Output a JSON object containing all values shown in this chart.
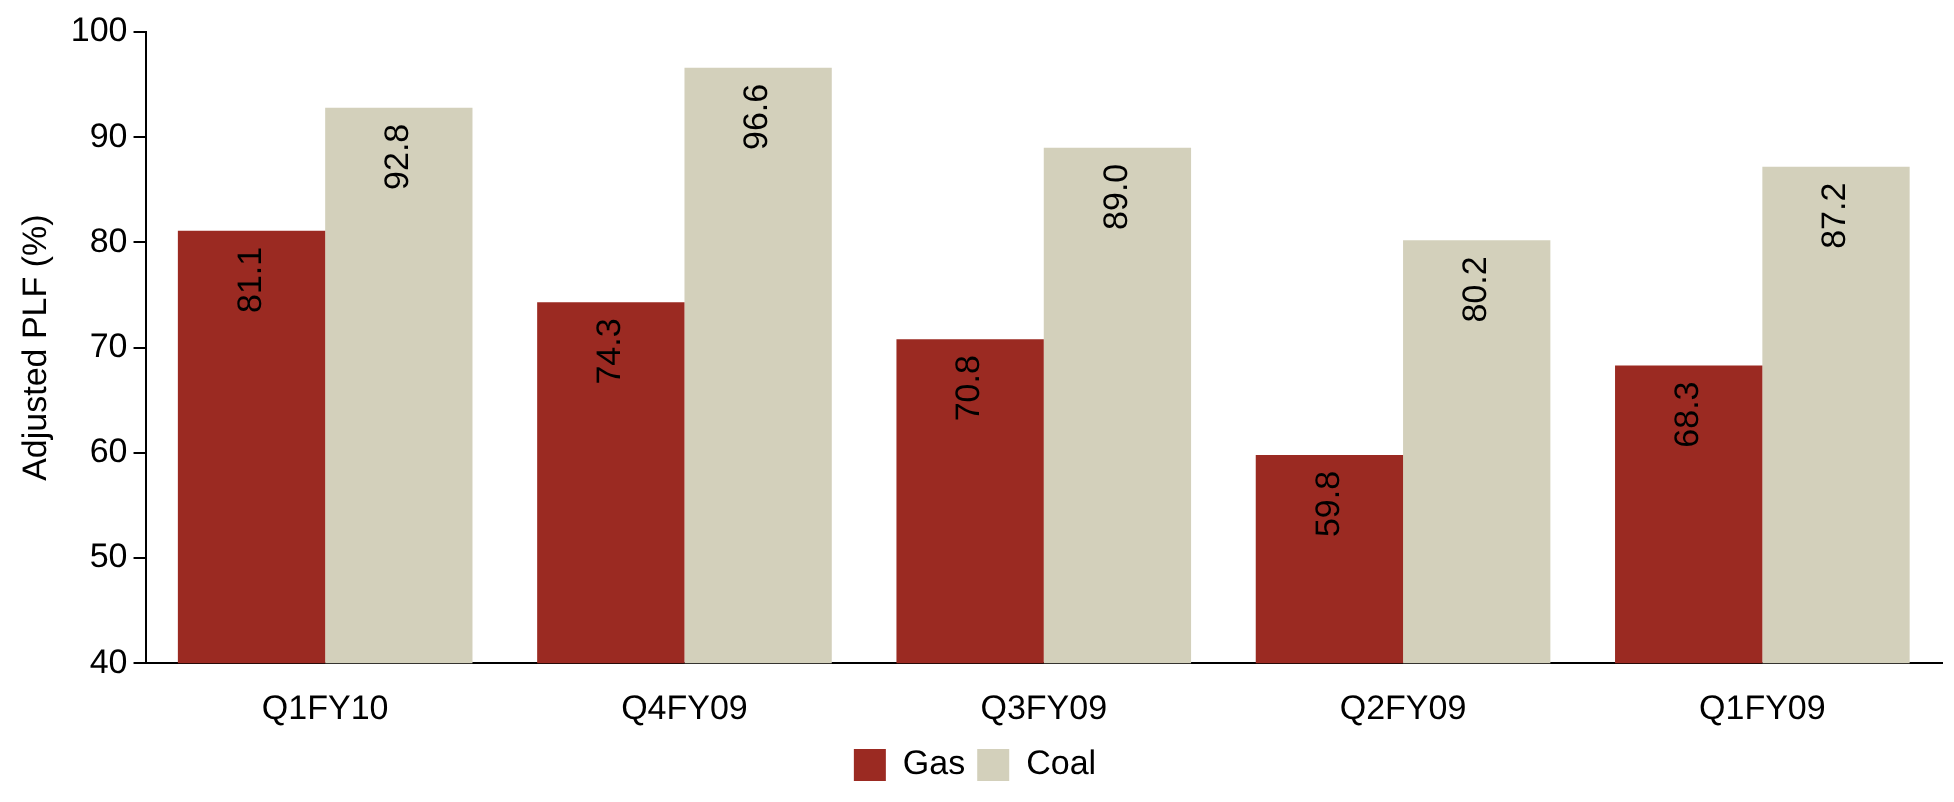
{
  "chart_data": {
    "type": "bar",
    "ylabel": "Adjusted PLF (%)",
    "categories": [
      "Q1FY10",
      "Q4FY09",
      "Q3FY09",
      "Q2FY09",
      "Q1FY09"
    ],
    "series": [
      {
        "name": "Gas",
        "color": "#9b2a22",
        "values": [
          81.1,
          74.3,
          70.8,
          59.8,
          68.3
        ],
        "value_labels": [
          "81.1",
          "74.3",
          "70.8",
          "59.8",
          "68.3"
        ]
      },
      {
        "name": "Coal",
        "color": "#d3d0bb",
        "values": [
          92.8,
          96.6,
          89.0,
          80.2,
          87.2
        ],
        "value_labels": [
          "92.8",
          "96.6",
          "89.0",
          "80.2",
          "87.2"
        ]
      }
    ],
    "ylim": [
      40,
      100
    ],
    "yticks": [
      40,
      50,
      60,
      70,
      80,
      90,
      100
    ],
    "grid": false,
    "legend": "bottom"
  }
}
